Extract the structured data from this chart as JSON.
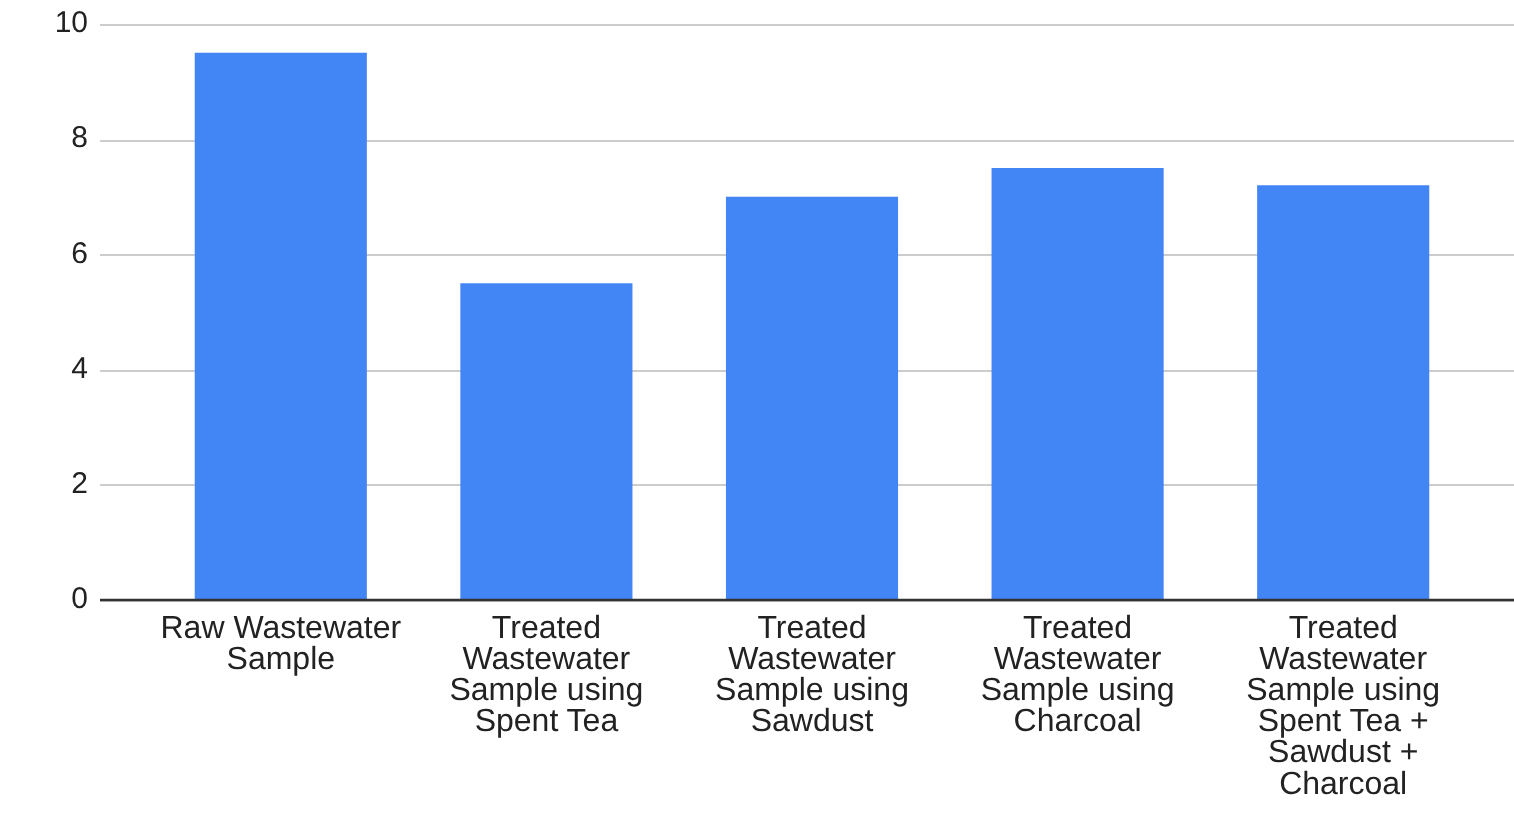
{
  "chart_data": {
    "type": "bar",
    "categories": [
      "Raw Wastewater Sample",
      "Treated Wastewater Sample using Spent Tea",
      "Treated Wastewater Sample using Sawdust",
      "Treated Wastewater Sample using Charcoal",
      "Treated Wastewater Sample using Spent Tea + Sawdust + Charcoal"
    ],
    "values": [
      9.5,
      5.5,
      7,
      7.5,
      7.2
    ],
    "color": "#4285f4",
    "ylim": [
      0,
      10
    ],
    "yticks": [
      0,
      2,
      4,
      6,
      8,
      10
    ],
    "grid": "y"
  }
}
